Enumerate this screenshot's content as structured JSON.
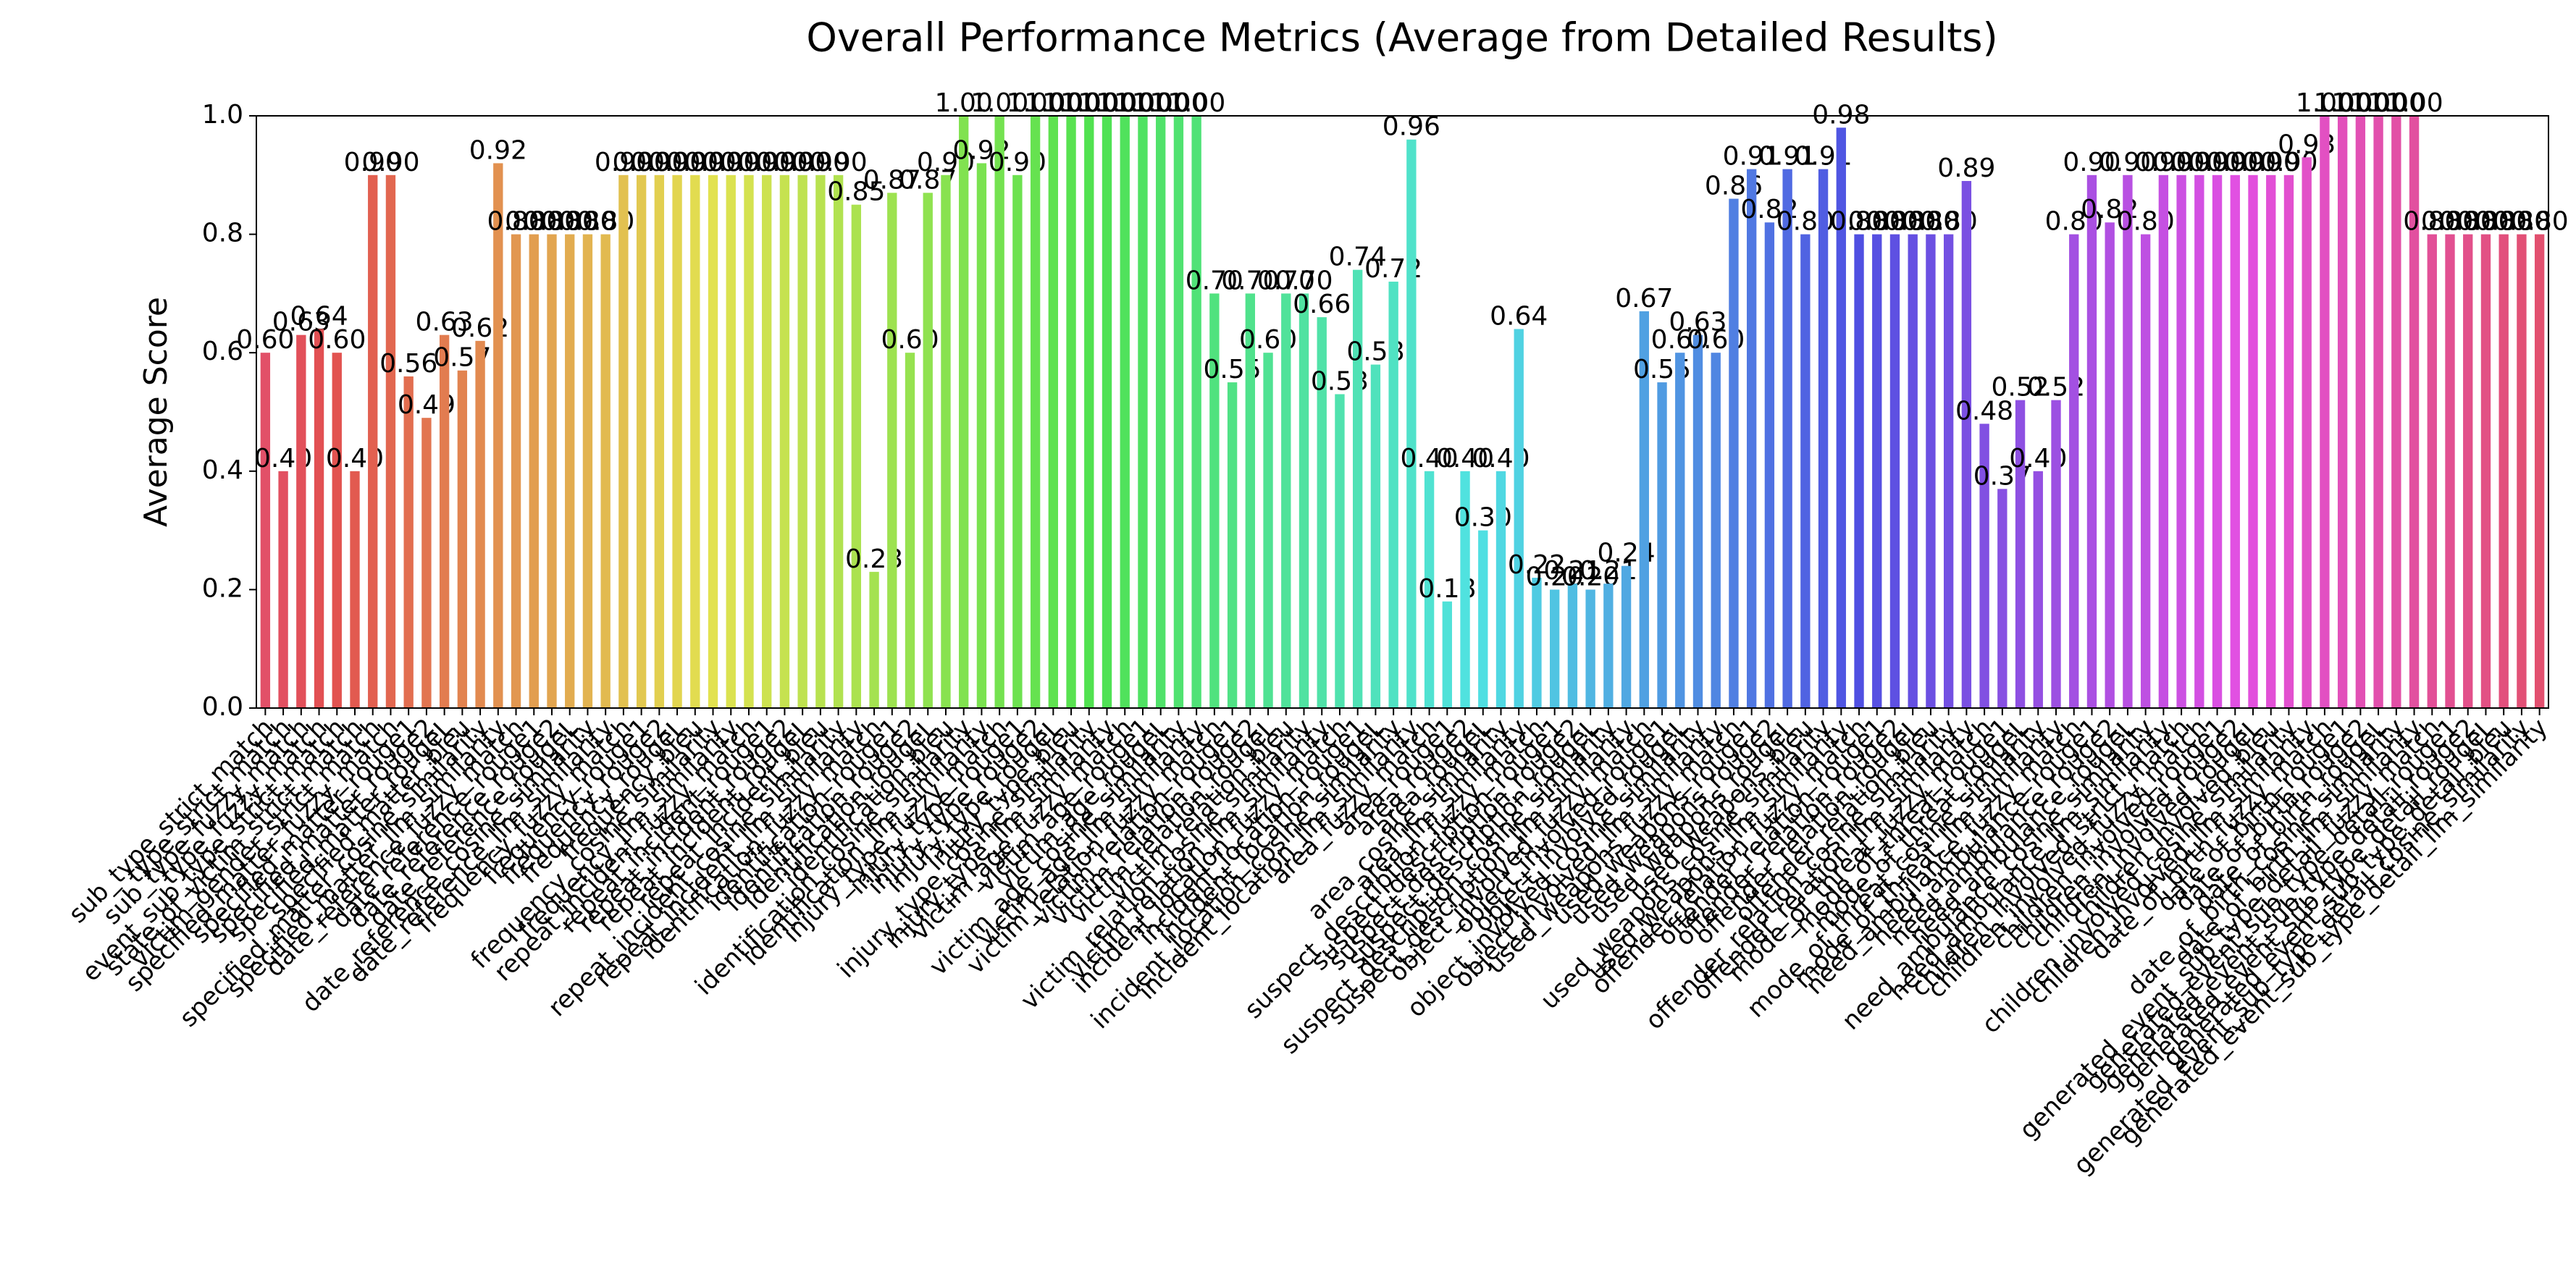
{
  "chart_data": {
    "type": "bar",
    "title": "Overall Performance Metrics (Average from Detailed Results)",
    "y_label": "Average Score",
    "palette": "husl",
    "ylim": [
      0,
      1
    ],
    "yticks": [
      {
        "value": 0,
        "label": "0.0"
      },
      0.2,
      0.4,
      0.6,
      0.8,
      {
        "value": 1,
        "label": "1.0"
      }
    ],
    "categories": [
      "sub_type_strict_match",
      "type_strict_match",
      "sub_type_fuzzy_match",
      "type_fuzzy_match",
      "event_sub_type_strict_match",
      "state_of_victim_strict_match",
      "victim_gender_strict_match",
      "specified_matter_fuzzy_match",
      "specified_matter_rouge1",
      "specified_matter_rouge2",
      "specified_matter_rougeL",
      "specified_matter_bleu",
      "specified_matter_cosine_similarity",
      "specified_matter_llm_similarity",
      "date_reference_fuzzy_match",
      "date_reference_rouge1",
      "date_reference_rouge2",
      "date_reference_rougeL",
      "date_reference_cosine_similarity",
      "date_reference_llm_similarity",
      "frequency_fuzzy_match",
      "frequency_rouge1",
      "frequency_rouge2",
      "frequency_rougeL",
      "frequency_bleu",
      "frequency_cosine_similarity",
      "frequency_llm_similarity",
      "repeat_incident_fuzzy_match",
      "repeat_incident_rouge1",
      "repeat_incident_rouge2",
      "repeat_incident_rougeL",
      "repeat_incident_bleu",
      "repeat_incident_cosine_similarity",
      "repeat_incident_llm_similarity",
      "identification_fuzzy_match",
      "identification_rouge1",
      "identification_rouge2",
      "identification_rougeL",
      "identification_bleu",
      "identification_cosine_similarity",
      "identification_llm_similarity",
      "injury_type_fuzzy_match",
      "injury_type_rouge1",
      "injury_type_rouge2",
      "injury_type_rougeL",
      "injury_type_bleu",
      "injury_type_cosine_similarity",
      "injury_type_llm_similarity",
      "victim_age_fuzzy_match",
      "victim_age_rouge1",
      "victim_age_rougeL",
      "victim_age_cosine_similarity",
      "victim_age_llm_similarity",
      "victim_relation_fuzzy_match",
      "victim_relation_rouge1",
      "victim_relation_rouge2",
      "victim_relation_rougeL",
      "victim_relation_bleu",
      "victim_relation_cosine_similarity",
      "victim_relation_llm_similarity",
      "incident_location_fuzzy_match",
      "incident_location_rouge1",
      "incident_location_rougeL",
      "incident_location_cosine_similarity",
      "incident_location_llm_similarity",
      "area_fuzzy_match",
      "area_rouge1",
      "area_rouge2",
      "area_rougeL",
      "area_cosine_similarity",
      "area_llm_similarity",
      "suspect_description_fuzzy_match",
      "suspect_description_rouge1",
      "suspect_description_rouge2",
      "suspect_description_rougeL",
      "suspect_description_cosine_similarity",
      "suspect_description_llm_similarity",
      "object_involved_fuzzy_match",
      "object_involved_rouge1",
      "object_involved_rougeL",
      "object_involved_cosine_similarity",
      "object_involved_llm_similarity",
      "used_weapons_fuzzy_match",
      "used_weapons_rouge1",
      "used_weapons_rouge2",
      "used_weapons_rougeL",
      "used_weapons_bleu",
      "used_weapons_cosine_similarity",
      "used_weapons_llm_similarity",
      "offender_relation_fuzzy_match",
      "offender_relation_rouge1",
      "offender_relation_rouge2",
      "offender_relation_rougeL",
      "offender_relation_bleu",
      "offender_relation_cosine_similarity",
      "offender_relation_llm_similarity",
      "mode_of_threat_fuzzy_match",
      "mode_of_threat_rouge1",
      "mode_of_threat_rougeL",
      "mode_of_threat_cosine_similarity",
      "mode_of_threat_llm_similarity",
      "need_ambulance_fuzzy_match",
      "need_ambulance_rouge1",
      "need_ambulance_rouge2",
      "need_ambulance_rougeL",
      "need_ambulance_cosine_similarity",
      "need_ambulance_llm_similarity",
      "children_involved_strict_match",
      "children_involved_fuzzy_match",
      "children_involved_rouge1",
      "children_involved_rouge2",
      "children_involved_rougeL",
      "children_involved_bleu",
      "children_involved_cosine_similarity",
      "children_involved_llm_similarity",
      "date_of_birth_fuzzy_match",
      "date_of_birth_rouge1",
      "date_of_birth_rouge2",
      "date_of_birth_rougeL",
      "date_of_birth_cosine_similarity",
      "date_of_birth_llm_similarity",
      "generated_event_sub_type_detail_fuzzy_match",
      "generated_event_sub_type_detail_rouge1",
      "generated_event_sub_type_detail_rouge2",
      "generated_event_sub_type_detail_rougeL",
      "generated_event_sub_type_detail_bleu",
      "generated_event_sub_type_detail_cosine_similarity",
      "generated_event_sub_type_detail_llm_similarity"
    ],
    "values": [
      0.6,
      0.4,
      0.63,
      0.64,
      0.6,
      0.4,
      0.9,
      0.9,
      0.56,
      0.49,
      0.63,
      0.57,
      0.62,
      0.92,
      0.8,
      0.8,
      0.8,
      0.8,
      0.8,
      0.8,
      0.9,
      0.9,
      0.9,
      0.9,
      0.9,
      0.9,
      0.9,
      0.9,
      0.9,
      0.9,
      0.9,
      0.9,
      0.9,
      0.85,
      0.23,
      0.87,
      0.6,
      0.87,
      0.9,
      1,
      0.92,
      1,
      0.9,
      1,
      1,
      1,
      1,
      1,
      1,
      1,
      1,
      1,
      1,
      0.7,
      0.55,
      0.7,
      0.6,
      0.7,
      0.7,
      0.66,
      0.53,
      0.74,
      0.58,
      0.72,
      0.96,
      0.4,
      0.18,
      0.4,
      0.3,
      0.4,
      0.64,
      0.22,
      0.2,
      0.21,
      0.2,
      0.21,
      0.24,
      0.67,
      0.55,
      0.6,
      0.63,
      0.6,
      0.86,
      0.91,
      0.82,
      0.91,
      0.8,
      0.91,
      0.98,
      0.8,
      0.8,
      0.8,
      0.8,
      0.8,
      0.8,
      0.89,
      0.48,
      0.37,
      0.52,
      0.4,
      0.52,
      0.8,
      0.9,
      0.82,
      0.9,
      0.8,
      0.9,
      0.9,
      0.9,
      0.9,
      0.9,
      0.9,
      0.9,
      0.9,
      0.93,
      1,
      1,
      1,
      1,
      1,
      1,
      0.8,
      0.8,
      0.8,
      0.8,
      0.8,
      0.8,
      0.8
    ],
    "value_labels": [
      "0.60",
      "0.40",
      "0.63",
      "0.64",
      "0.60",
      "0.40",
      "0.90",
      "0.90",
      "0.56",
      "0.49",
      "0.63",
      "0.57",
      "0.62",
      "0.92",
      "0.80",
      "0.80",
      "0.80",
      "0.80",
      "0.80",
      "0.80",
      "0.90",
      "0.90",
      "0.90",
      "0.90",
      "0.90",
      "0.90",
      "0.90",
      "0.90",
      "0.90",
      "0.90",
      "0.90",
      "0.90",
      "0.90",
      "0.85",
      "0.23",
      "0.87",
      "0.60",
      "0.87",
      "0.90",
      "1.00",
      "0.92",
      "1.00",
      "0.90",
      "1.00",
      "1.00",
      "1.00",
      "1.00",
      "1.00",
      "1.00",
      "1.00",
      "1.00",
      "1.00",
      "1.00",
      "0.70",
      "0.55",
      "0.70",
      "0.60",
      "0.70",
      "0.70",
      "0.66",
      "0.53",
      "0.74",
      "0.58",
      "0.72",
      "0.96",
      "0.40",
      "0.18",
      "0.40",
      "0.30",
      "0.40",
      "0.64",
      "0.22",
      "0.20",
      "0.21",
      "0.20",
      "0.21",
      "0.24",
      "0.67",
      "0.55",
      "0.60",
      "0.63",
      "0.60",
      "0.86",
      "0.91",
      "0.82",
      "0.91",
      "0.80",
      "0.91",
      "0.98",
      "0.80",
      "0.80",
      "0.80",
      "0.80",
      "0.80",
      "0.80",
      "0.89",
      "0.48",
      "0.37",
      "0.52",
      "0.40",
      "0.52",
      "0.80",
      "0.90",
      "0.82",
      "0.90",
      "0.80",
      "0.90",
      "0.90",
      "0.90",
      "0.90",
      "0.90",
      "0.90",
      "0.90",
      "0.90",
      "0.93",
      "1.00",
      "1.00",
      "1.00",
      "1.00",
      "1.00",
      "1.00",
      "0.80",
      "0.80",
      "0.80",
      "0.80",
      "0.80",
      "0.80",
      "0.80"
    ]
  }
}
